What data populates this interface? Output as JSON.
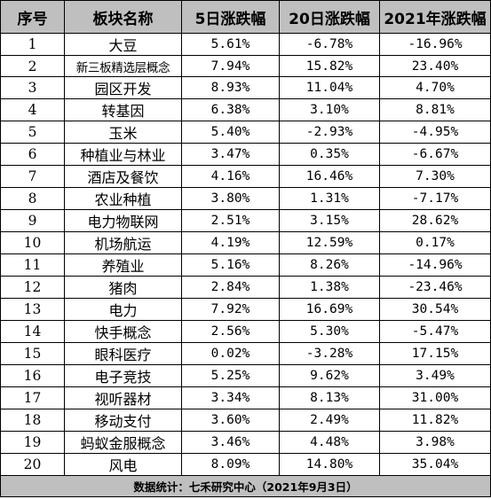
{
  "headers": [
    "序号",
    "板块名称",
    "5日涨跌幅",
    "20日涨跌幅",
    "2021年涨跌幅"
  ],
  "rows": [
    [
      "1",
      "大豆",
      "5.61%",
      "-6.78%",
      "-16.96%"
    ],
    [
      "2",
      "新三板精选层概念",
      "7.94%",
      "15.82%",
      "23.40%"
    ],
    [
      "3",
      "园区开发",
      "8.93%",
      "11.04%",
      "4.70%"
    ],
    [
      "4",
      "转基因",
      "6.38%",
      "3.10%",
      "8.81%"
    ],
    [
      "5",
      "玉米",
      "5.40%",
      "-2.93%",
      "-4.95%"
    ],
    [
      "6",
      "种植业与林业",
      "3.47%",
      "0.35%",
      "-6.67%"
    ],
    [
      "7",
      "酒店及餐饮",
      "4.16%",
      "16.46%",
      "7.30%"
    ],
    [
      "8",
      "农业种植",
      "3.80%",
      "1.31%",
      "-7.17%"
    ],
    [
      "9",
      "电力物联网",
      "2.51%",
      "3.15%",
      "28.62%"
    ],
    [
      "10",
      "机场航运",
      "4.19%",
      "12.59%",
      "0.17%"
    ],
    [
      "11",
      "养殖业",
      "5.16%",
      "8.26%",
      "-14.96%"
    ],
    [
      "12",
      "猪肉",
      "2.84%",
      "1.38%",
      "-23.46%"
    ],
    [
      "13",
      "电力",
      "7.92%",
      "16.69%",
      "30.54%"
    ],
    [
      "14",
      "快手概念",
      "2.56%",
      "5.30%",
      "-5.47%"
    ],
    [
      "15",
      "眼科医疗",
      "0.02%",
      "-3.28%",
      "17.15%"
    ],
    [
      "16",
      "电子竞技",
      "5.25%",
      "9.62%",
      "3.49%"
    ],
    [
      "17",
      "视听器材",
      "3.34%",
      "8.13%",
      "31.00%"
    ],
    [
      "18",
      "移动支付",
      "3.60%",
      "2.49%",
      "11.82%"
    ],
    [
      "19",
      "蚂蚁金服概念",
      "3.46%",
      "4.48%",
      "3.98%"
    ],
    [
      "20",
      "风电",
      "8.09%",
      "14.80%",
      "35.04%"
    ]
  ],
  "footer": "数据统计：七禾研究中心（2021年9月3日）"
}
